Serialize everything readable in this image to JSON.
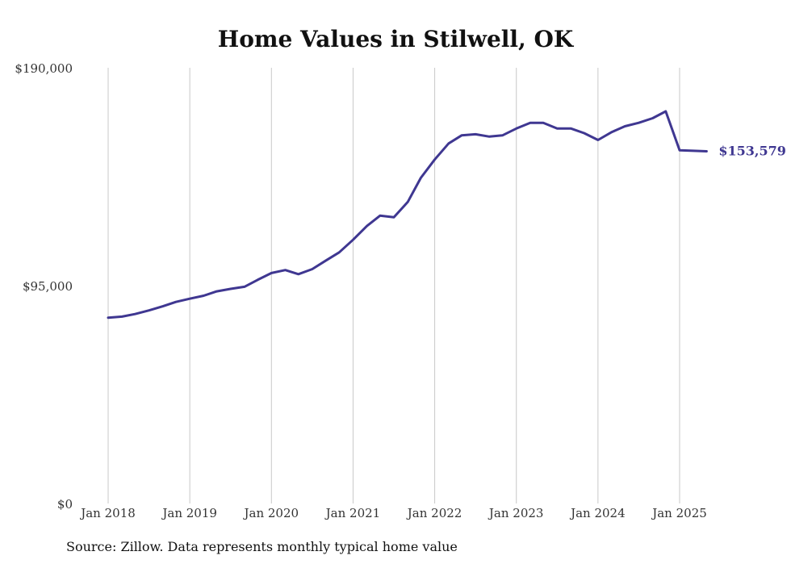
{
  "chart_data": {
    "type": "line",
    "title": "Home Values in Stilwell, OK",
    "xlabel": "",
    "ylabel": "",
    "ylim": [
      0,
      190000
    ],
    "y_ticks": [
      {
        "value": 0,
        "label": "$0"
      },
      {
        "value": 95000,
        "label": "$95,000"
      },
      {
        "value": 190000,
        "label": "$190,000"
      }
    ],
    "x_ticks": [
      {
        "value": 2018,
        "label": "Jan 2018"
      },
      {
        "value": 2019,
        "label": "Jan 2019"
      },
      {
        "value": 2020,
        "label": "Jan 2020"
      },
      {
        "value": 2021,
        "label": "Jan 2021"
      },
      {
        "value": 2022,
        "label": "Jan 2022"
      },
      {
        "value": 2023,
        "label": "Jan 2023"
      },
      {
        "value": 2024,
        "label": "Jan 2024"
      },
      {
        "value": 2025,
        "label": "Jan 2025"
      }
    ],
    "grid": "vertical",
    "legend": "none",
    "line_color": "#3f3791",
    "end_label": "$153,579",
    "series": [
      {
        "x": [
          2018.0,
          2018.17,
          2018.33,
          2018.5,
          2018.67,
          2018.83,
          2019.0,
          2019.17,
          2019.33,
          2019.5,
          2019.67,
          2019.83,
          2020.0,
          2020.17,
          2020.33,
          2020.5,
          2020.67,
          2020.83,
          2021.0,
          2021.17,
          2021.33,
          2021.5,
          2021.67,
          2021.83,
          2022.0,
          2022.17,
          2022.33,
          2022.5,
          2022.67,
          2022.83,
          2023.0,
          2023.17,
          2023.33,
          2023.5,
          2023.67,
          2023.83,
          2024.0,
          2024.17,
          2024.33,
          2024.5,
          2024.67,
          2024.83,
          2025.0,
          2025.17,
          2025.33
        ],
        "values": [
          81000,
          81500,
          82600,
          84200,
          86000,
          87900,
          89300,
          90600,
          92500,
          93600,
          94500,
          97500,
          100500,
          101800,
          100000,
          102200,
          106000,
          109500,
          115000,
          121000,
          125500,
          124800,
          131500,
          142000,
          150000,
          157000,
          160500,
          161000,
          160000,
          160500,
          163500,
          166000,
          166000,
          163500,
          163500,
          161500,
          158500,
          162000,
          164500,
          166000,
          168000,
          171000,
          154000,
          153800,
          153579
        ]
      }
    ],
    "source": "Source: Zillow. Data represents monthly typical home value"
  }
}
